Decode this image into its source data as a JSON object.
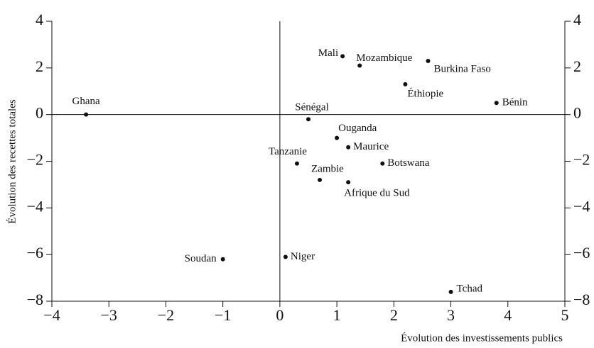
{
  "chart_data": {
    "type": "scatter",
    "x_label": "Évolution des investissements publics",
    "y_label": "Évolution des recettes totales",
    "xlim": [
      -4,
      5
    ],
    "ylim": [
      -8,
      4
    ],
    "xticks": [
      {
        "value": -4,
        "label": "−4"
      },
      {
        "value": -3,
        "label": "−3"
      },
      {
        "value": -2,
        "label": "−2"
      },
      {
        "value": -1,
        "label": "−1"
      },
      0,
      1,
      2,
      3,
      4,
      5
    ],
    "yticks": [
      {
        "value": -8,
        "label": "−8"
      },
      {
        "value": -6,
        "label": "−6"
      },
      {
        "value": -4,
        "label": "−4"
      },
      {
        "value": -2,
        "label": "−2"
      },
      0,
      2,
      4
    ],
    "color": "#111111",
    "labels": [
      "Ghana",
      "Mali",
      "Mozambique",
      "Burkina Faso",
      "Éthiopie",
      "Bénin",
      "Sénégal",
      "Ouganda",
      "Maurice",
      "Tanzanie",
      "Botswana",
      "Zambie",
      "Afrique du Sud",
      "Niger",
      "Soudan",
      "Tchad"
    ],
    "x": [
      -3.4,
      1.1,
      1.4,
      2.6,
      2.2,
      3.8,
      0.5,
      1.0,
      1.2,
      0.3,
      1.8,
      0.7,
      1.2,
      0.1,
      -1.0,
      3.0
    ],
    "y": [
      0,
      2.5,
      2.1,
      2.3,
      1.3,
      0.5,
      -0.2,
      -1.0,
      -1.4,
      -2.1,
      -2.1,
      -2.8,
      -2.9,
      -6.1,
      -6.2,
      -7.6
    ]
  }
}
